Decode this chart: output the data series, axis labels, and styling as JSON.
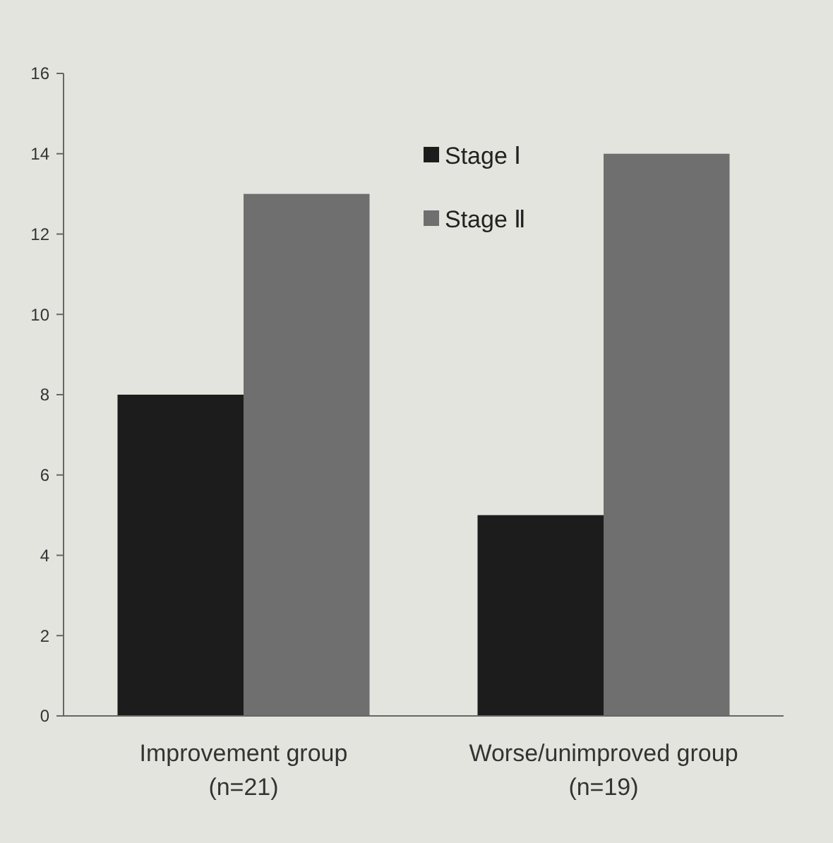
{
  "chart_data": {
    "type": "bar",
    "categories": [
      "Improvement group (n=21)",
      "Worse/unimproved group  (n=19)"
    ],
    "series": [
      {
        "name": "Stage Ⅰ",
        "color": "#1c1c1c",
        "values": [
          8,
          5
        ]
      },
      {
        "name": "Stage Ⅱ",
        "color": "#6f6f6f",
        "values": [
          13,
          14
        ]
      }
    ],
    "ylim": [
      0,
      16
    ],
    "yticks": [
      0,
      2,
      4,
      6,
      8,
      10,
      12,
      14,
      16
    ],
    "grid": false,
    "legend": "top right"
  }
}
